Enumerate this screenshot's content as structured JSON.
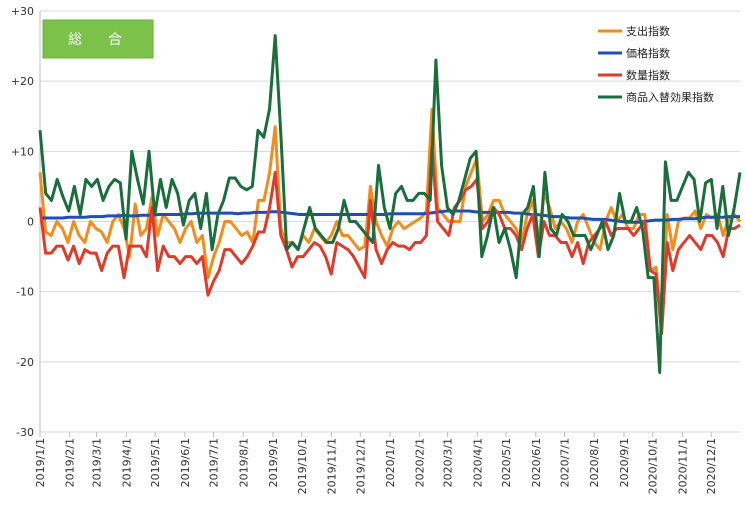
{
  "chart_data": {
    "type": "line",
    "title": "総　合",
    "ylim": [
      -30,
      30
    ],
    "yticks": [
      {
        "value": 30,
        "label": "+30"
      },
      {
        "value": 20,
        "label": "+20"
      },
      {
        "value": 10,
        "label": "+10"
      },
      {
        "value": 0,
        "label": "0"
      },
      {
        "value": -10,
        "label": "-10"
      },
      {
        "value": -20,
        "label": "-20"
      },
      {
        "value": -30,
        "label": "-30"
      }
    ],
    "xticks": [
      "2019/1/1",
      "2019/2/1",
      "2019/3/1",
      "2019/4/1",
      "2019/5/1",
      "2019/6/1",
      "2019/7/1",
      "2019/8/1",
      "2019/9/1",
      "2019/10/1",
      "2019/11/1",
      "2019/12/1",
      "2020/1/1",
      "2020/2/1",
      "2020/3/1",
      "2020/4/1",
      "2020/5/1",
      "2020/6/1",
      "2020/7/1",
      "2020/8/1",
      "2020/9/1",
      "2020/10/1",
      "2020/11/1",
      "2020/12/1"
    ],
    "x_start": "2019/1/1",
    "x_end": "2020/12/31",
    "legend_position": "top-right",
    "grid": "horizontal",
    "series": [
      {
        "name": "支出指数",
        "color": "#f28c1c",
        "values": [
          7,
          -1.5,
          -2,
          0,
          -1,
          -3,
          0,
          -2,
          -3,
          0,
          -1,
          -1.5,
          -3,
          0,
          1,
          -1,
          -5,
          2.5,
          -2,
          -1,
          3.5,
          -2,
          1,
          0,
          -1,
          -3,
          -1,
          0,
          -3,
          -2,
          -8,
          -5,
          -3,
          0,
          0,
          -1,
          -2,
          -1.5,
          -3,
          3,
          3,
          7,
          13.5,
          -1,
          -3,
          -3,
          -4,
          -2,
          -3,
          -1,
          -2,
          -3,
          -2,
          0,
          -2,
          -2,
          -3,
          -4,
          -3.5,
          5,
          0,
          -2,
          -3.5,
          -1,
          0,
          -1,
          -0.5,
          0,
          0.5,
          1.5,
          16,
          2,
          1,
          0,
          0,
          0,
          5,
          7,
          9,
          0,
          1,
          3,
          3,
          1,
          0,
          -1,
          -3,
          1,
          3,
          -3,
          4,
          2,
          -1,
          0,
          -1,
          -3,
          0,
          1,
          -1,
          -3,
          -4,
          0,
          2,
          0,
          1,
          -1,
          -1,
          1,
          1,
          -7,
          -6.5,
          -14,
          1,
          -4,
          0,
          0.5,
          0.5,
          1.5,
          -1,
          1,
          0.5,
          1,
          -2,
          0.5,
          1,
          0
        ]
      },
      {
        "name": "価格指数",
        "color": "#1f4fb4",
        "values": [
          0.5,
          0.5,
          0.5,
          0.5,
          0.5,
          0.6,
          0.6,
          0.6,
          0.6,
          0.7,
          0.7,
          0.7,
          0.8,
          0.8,
          0.8,
          0.9,
          0.8,
          0.8,
          0.9,
          0.9,
          0.9,
          1,
          1,
          1,
          1,
          1,
          1.1,
          1.1,
          1.2,
          1.2,
          1.2,
          1.2,
          1.2,
          1.2,
          1.2,
          1.1,
          1.2,
          1.2,
          1.3,
          1.3,
          1.3,
          1.4,
          1.4,
          1.3,
          1.2,
          1.1,
          1,
          1,
          1,
          1,
          1,
          1,
          1,
          1,
          1,
          1,
          1,
          1,
          1,
          1,
          1,
          1,
          1.1,
          1.1,
          1.1,
          1.1,
          1.1,
          1.1,
          1.1,
          1.2,
          1.3,
          1.4,
          1.5,
          1.5,
          1.5,
          1.5,
          1.5,
          1.4,
          1.3,
          1.3,
          1.3,
          1.3,
          1.3,
          1.3,
          1.2,
          1.2,
          1.1,
          1,
          1,
          0.9,
          0.8,
          0.7,
          0.7,
          0.6,
          0.5,
          0.5,
          0.5,
          0.4,
          0.3,
          0.3,
          0.3,
          0.2,
          0.1,
          0,
          -0.1,
          -0.1,
          -0.1,
          0,
          0.1,
          0.2,
          0.2,
          0.2,
          0.3,
          0.3,
          0.4,
          0.4,
          0.4,
          0.5,
          0.6,
          0.6,
          0.6,
          0.6,
          0.7,
          0.7,
          0.7
        ]
      },
      {
        "name": "数量指数",
        "color": "#e03a2a",
        "values": [
          2,
          -4.5,
          -4.5,
          -3.5,
          -3.5,
          -5.5,
          -3.5,
          -6,
          -4,
          -4.5,
          -4.5,
          -7,
          -4.5,
          -3.5,
          -3.5,
          -8,
          -3.5,
          -3.5,
          -3.5,
          -5,
          2,
          -7,
          -3.5,
          -5,
          -5,
          -6,
          -5,
          -5,
          -6,
          -5,
          -10.5,
          -8.5,
          -7,
          -4,
          -4,
          -5,
          -6,
          -5,
          -3.5,
          -1.5,
          -1.5,
          2,
          7,
          -2,
          -4,
          -6.5,
          -5,
          -5,
          -4,
          -3,
          -3.5,
          -5,
          -7.5,
          -3,
          -3.5,
          -4,
          -5,
          -6.5,
          -8,
          3,
          -4,
          -6,
          -4,
          -3,
          -3.5,
          -3.5,
          -4,
          -3,
          -3,
          -2,
          10.5,
          0,
          -1,
          -2,
          2,
          3,
          4.5,
          5,
          6,
          -1,
          0,
          2,
          1,
          -1,
          -1,
          -2,
          -4,
          -1,
          1,
          -5,
          0,
          -2,
          -2,
          -3,
          -3,
          -5,
          -3,
          -6,
          -3,
          -2,
          -1,
          0,
          -2,
          -1,
          -1,
          -1,
          -2,
          -1,
          0,
          -7,
          -7.5,
          -16,
          -3,
          -7,
          -4,
          -3,
          -2,
          -3,
          -4,
          -2,
          -2,
          -3,
          -5,
          -1,
          -1,
          -0.5
        ]
      },
      {
        "name": "商品入替効果指数",
        "color": "#1a6e3c",
        "values": [
          13,
          4,
          3,
          6,
          3.5,
          1.5,
          5,
          1,
          6,
          5,
          6,
          3,
          5,
          6,
          5.5,
          -2.5,
          10,
          6,
          2.5,
          10,
          1,
          6,
          2,
          6,
          4,
          -0.5,
          3,
          4,
          -1,
          4,
          -4,
          1,
          3,
          6.2,
          6.2,
          5,
          4.5,
          5,
          13,
          12,
          16,
          26.5,
          12,
          -4,
          -3,
          -4,
          -1,
          2,
          -1,
          -2,
          -3,
          -3,
          -1,
          3,
          0,
          0,
          -1,
          -2,
          -3,
          8,
          2,
          -1,
          4,
          5,
          3,
          3,
          4,
          4,
          3,
          23,
          8,
          2,
          1,
          3,
          6,
          9,
          10,
          -5,
          -2,
          2,
          -3,
          -1,
          -4,
          -8,
          1,
          2,
          5,
          -5,
          7,
          -1,
          -2,
          1,
          0,
          -2,
          -2,
          -2,
          -4,
          -2,
          0,
          -4,
          -2,
          4,
          0,
          0,
          2,
          -1,
          -8,
          -8,
          -21.5,
          8.5,
          3,
          3,
          5,
          7,
          6,
          0,
          5.5,
          6,
          -1,
          5,
          -2,
          2,
          7
        ]
      }
    ]
  }
}
